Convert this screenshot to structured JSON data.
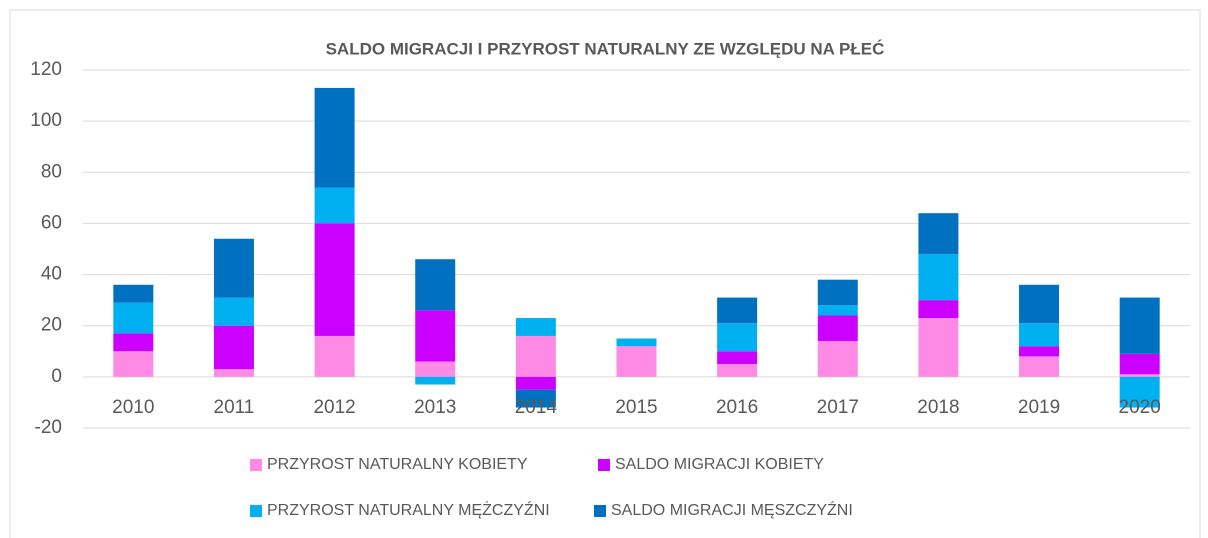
{
  "chart_data": {
    "type": "stacked_bar",
    "title": "SALDO MIGRACJI I PRZYROST NATURALNY ZE WZGLĘDU NA PŁEĆ",
    "categories": [
      "2010",
      "2011",
      "2012",
      "2013",
      "2014",
      "2015",
      "2016",
      "2017",
      "2018",
      "2019",
      "2020"
    ],
    "series": [
      {
        "name": "PRZYROST NATURALNY KOBIETY",
        "color": "#ff8ae6",
        "values": [
          10,
          3,
          16,
          6,
          16,
          12,
          5,
          14,
          23,
          8,
          1
        ]
      },
      {
        "name": "SALDO MIGRACJI KOBIETY",
        "color": "#cc00ff",
        "values": [
          7,
          17,
          44,
          20,
          -5,
          0,
          5,
          10,
          7,
          4,
          8
        ]
      },
      {
        "name": "PRZYROST NATURALNY MĘŻCZYŹNI",
        "color": "#00b0f0",
        "values": [
          12,
          11,
          14,
          -3,
          7,
          3,
          11,
          4,
          18,
          9,
          -12
        ]
      },
      {
        "name": "SALDO MIGRACJI MĘSZCZYŹNI",
        "color": "#0070c0",
        "values": [
          7,
          23,
          39,
          20,
          -7,
          0,
          10,
          10,
          16,
          15,
          22
        ]
      }
    ],
    "ylim": [
      -20,
      120
    ],
    "yticks": [
      -20,
      0,
      20,
      40,
      60,
      80,
      100,
      120
    ],
    "grid": true,
    "legend": "bottom"
  }
}
